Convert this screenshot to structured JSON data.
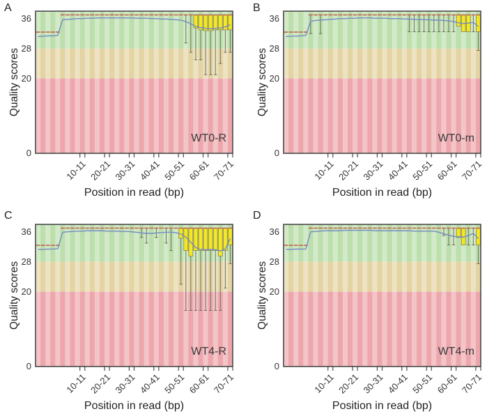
{
  "axes": {
    "x_title": "Position in read (bp)",
    "y_title": "Quality scores",
    "y_ticks": [
      36,
      28,
      20,
      0
    ],
    "x_tick_labels": [
      "10-11",
      "20-21",
      "30-31",
      "40-41",
      "50-51",
      "60-61",
      "70-71"
    ],
    "x_tick_bins": [
      10,
      15,
      20,
      25,
      30,
      35,
      40
    ],
    "bins": 40,
    "y_max_display": 38,
    "ylim": [
      0,
      38
    ],
    "bands": [
      {
        "range": [
          28,
          38
        ],
        "meaning": "good quality"
      },
      {
        "range": [
          20,
          28
        ],
        "meaning": "medium quality"
      },
      {
        "range": [
          0,
          20
        ],
        "meaning": "poor quality"
      }
    ]
  },
  "colors": {
    "band_green": "#bcdfad",
    "band_tan": "#e4d4a4",
    "band_pink": "#eda7ac",
    "stripe_overlay": "rgba(255,255,255,0.35)",
    "box_fill": "#f4e723",
    "box_stroke": "#8c8c60",
    "whisker": "#6f6f5c",
    "mean_line": "#7289c4",
    "median_dash": "#c06a52",
    "border": "#4a4a4a"
  },
  "chart_data": [
    {
      "type": "boxplot-line",
      "letter": "A",
      "name": "WT0-R",
      "xlabel": "Position in read (bp)",
      "ylabel": "Quality scores",
      "mean": [
        31.2,
        31.3,
        31.4,
        31.4,
        31.5,
        35.7,
        35.8,
        35.9,
        36.0,
        36.0,
        36.1,
        36.1,
        36.2,
        36.2,
        36.2,
        36.2,
        36.2,
        36.2,
        36.2,
        36.2,
        36.1,
        36.1,
        36.1,
        36.0,
        36.0,
        35.9,
        35.9,
        35.8,
        35.7,
        35.6,
        35.2,
        34.6,
        33.9,
        33.6,
        33.4,
        33.3,
        33.4,
        33.5,
        33.8,
        34.4
      ],
      "median": [
        32.4,
        32.4,
        32.4,
        32.4,
        32.4,
        37,
        37,
        37,
        37,
        37,
        37,
        37,
        37,
        37,
        37,
        37,
        37,
        37,
        37,
        37,
        37,
        37,
        37,
        37,
        37,
        37,
        37,
        37,
        37,
        37,
        37,
        37,
        37,
        37,
        37,
        37,
        37,
        37,
        37,
        37
      ],
      "boxes": {
        "33": [
          33.5,
          37
        ],
        "34": [
          33,
          37
        ],
        "35": [
          32.8,
          37
        ],
        "36": [
          32.8,
          37
        ],
        "37": [
          33,
          37
        ],
        "38": [
          33,
          37
        ],
        "39": [
          33,
          37
        ],
        "40": [
          33,
          37
        ]
      },
      "whiskers": {
        "31": [
          29.5,
          37
        ],
        "32": [
          27,
          37
        ],
        "33": [
          25,
          37
        ],
        "34": [
          25,
          37
        ],
        "35": [
          21,
          37
        ],
        "36": [
          21,
          37
        ],
        "37": [
          21,
          37
        ],
        "38": [
          24,
          37
        ],
        "39": [
          27,
          37
        ],
        "40": [
          27,
          37
        ]
      }
    },
    {
      "type": "boxplot-line",
      "letter": "B",
      "name": "WT0-m",
      "xlabel": "Position in read (bp)",
      "ylabel": "Quality scores",
      "mean": [
        31.2,
        31.3,
        31.3,
        31.4,
        31.5,
        35.3,
        35.5,
        35.6,
        35.7,
        35.8,
        35.9,
        36.0,
        36.0,
        36.1,
        36.1,
        36.2,
        36.2,
        36.2,
        36.1,
        36.1,
        36.1,
        36.0,
        36.0,
        36.0,
        35.9,
        35.9,
        35.8,
        35.8,
        35.7,
        35.7,
        35.6,
        35.6,
        35.5,
        35.4,
        35.2,
        34.9,
        34.7,
        34.8,
        35.0,
        33.9
      ],
      "median": [
        32.4,
        32.4,
        32.4,
        32.4,
        32.4,
        37,
        37,
        37,
        37,
        37,
        37,
        37,
        37,
        37,
        37,
        37,
        37,
        37,
        37,
        37,
        37,
        37,
        37,
        37,
        37,
        37,
        37,
        37,
        37,
        37,
        37,
        37,
        37,
        37,
        37,
        37,
        37,
        37,
        37,
        37
      ],
      "boxes": {
        "36": [
          34,
          37
        ],
        "37": [
          32.5,
          37
        ],
        "38": [
          32.5,
          37
        ],
        "40": [
          32.5,
          37
        ]
      },
      "whiskers": {
        "6": [
          32,
          37
        ],
        "8": [
          32,
          37
        ],
        "26": [
          32.5,
          37
        ],
        "27": [
          32.5,
          37
        ],
        "28": [
          32.5,
          37
        ],
        "29": [
          32.5,
          37
        ],
        "30": [
          32.5,
          37
        ],
        "31": [
          32.5,
          37
        ],
        "32": [
          32.5,
          37
        ],
        "33": [
          32.5,
          37
        ],
        "34": [
          32.5,
          37
        ],
        "35": [
          32.5,
          37
        ],
        "39": [
          32.5,
          37
        ],
        "40": [
          27.5,
          37
        ]
      }
    },
    {
      "type": "boxplot-line",
      "letter": "C",
      "name": "WT4-R",
      "xlabel": "Position in read (bp)",
      "ylabel": "Quality scores",
      "mean": [
        31.3,
        31.3,
        31.4,
        31.4,
        31.5,
        35.9,
        36.0,
        36.1,
        36.2,
        36.2,
        36.3,
        36.3,
        36.3,
        36.3,
        36.2,
        36.2,
        36.2,
        36.1,
        36.1,
        36.0,
        35.9,
        35.7,
        35.6,
        35.6,
        35.7,
        35.8,
        35.9,
        35.9,
        35.8,
        35.4,
        34.6,
        33.2,
        31.8,
        31.3,
        31.2,
        31.3,
        31.2,
        30.9,
        31.4,
        34.2
      ],
      "median": [
        32.4,
        32.4,
        32.4,
        32.4,
        32.4,
        37,
        37,
        37,
        37,
        37,
        37,
        37,
        37,
        37,
        37,
        37,
        37,
        37,
        37,
        37,
        37,
        37,
        37,
        37,
        37,
        37,
        37,
        37,
        37,
        37,
        37,
        37,
        37,
        37,
        37,
        37,
        37,
        37,
        37,
        37
      ],
      "boxes": {
        "30": [
          34.3,
          37
        ],
        "31": [
          31,
          37
        ],
        "32": [
          29.5,
          37
        ],
        "33": [
          31,
          37
        ],
        "34": [
          31,
          37
        ],
        "35": [
          31,
          37
        ],
        "36": [
          31,
          37
        ],
        "37": [
          31,
          37
        ],
        "38": [
          29.5,
          37
        ],
        "39": [
          31,
          37
        ],
        "40": [
          32.5,
          37
        ]
      },
      "whiskers": {
        "22": [
          34.5,
          37
        ],
        "23": [
          33,
          37
        ],
        "25": [
          34.5,
          37
        ],
        "27": [
          33,
          37
        ],
        "28": [
          31,
          37
        ],
        "30": [
          22,
          37
        ],
        "31": [
          15,
          37
        ],
        "32": [
          15,
          37
        ],
        "33": [
          15,
          37
        ],
        "34": [
          15,
          37
        ],
        "35": [
          15,
          37
        ],
        "36": [
          15,
          37
        ],
        "37": [
          15,
          37
        ],
        "38": [
          15,
          37
        ],
        "39": [
          21,
          37
        ],
        "40": [
          27.5,
          37
        ]
      }
    },
    {
      "type": "boxplot-line",
      "letter": "D",
      "name": "WT4-m",
      "xlabel": "Position in read (bp)",
      "ylabel": "Quality scores",
      "mean": [
        31.3,
        31.3,
        31.4,
        31.4,
        31.4,
        36.0,
        36.1,
        36.2,
        36.3,
        36.3,
        36.3,
        36.3,
        36.4,
        36.4,
        36.4,
        36.4,
        36.4,
        36.4,
        36.3,
        36.3,
        36.3,
        36.3,
        36.3,
        36.3,
        36.3,
        36.3,
        36.2,
        36.2,
        36.2,
        36.2,
        36.2,
        35.9,
        35.5,
        35.1,
        34.8,
        34.7,
        34.6,
        35.0,
        35.6,
        34.2
      ],
      "median": [
        32.4,
        32.4,
        32.4,
        32.4,
        32.4,
        37,
        37,
        37,
        37,
        37,
        37,
        37,
        37,
        37,
        37,
        37,
        37,
        37,
        37,
        37,
        37,
        37,
        37,
        37,
        37,
        37,
        37,
        37,
        37,
        37,
        37,
        37,
        37,
        37,
        37,
        37,
        37,
        37,
        37,
        37
      ],
      "boxes": {
        "36": [
          34.5,
          37
        ],
        "37": [
          32.5,
          37
        ],
        "40": [
          32.5,
          37
        ]
      },
      "whiskers": {
        "33": [
          35,
          37
        ],
        "34": [
          32.5,
          37
        ],
        "35": [
          32.5,
          37
        ],
        "38": [
          32.5,
          37
        ],
        "39": [
          32.5,
          37
        ],
        "40": [
          27.5,
          37
        ]
      }
    }
  ]
}
